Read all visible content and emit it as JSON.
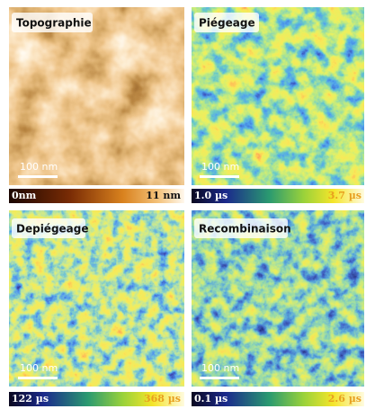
{
  "panels": [
    {
      "title": "Topographie",
      "scale_bar": "100 nm",
      "colorbar": {
        "min": "0nm",
        "max": "11 nm"
      }
    },
    {
      "title": "Piégeage",
      "scale_bar": "100 nm",
      "colorbar": {
        "min": "1.0 µs",
        "max": "3.7 µs"
      }
    },
    {
      "title": "Depiégeage",
      "scale_bar": "100 nm",
      "colorbar": {
        "min": "122 µs",
        "max": "368 µs"
      }
    },
    {
      "title": "Recombinaison",
      "scale_bar": "100 nm",
      "colorbar": {
        "min": "0.1 µs",
        "max": "2.6 µs"
      }
    }
  ]
}
